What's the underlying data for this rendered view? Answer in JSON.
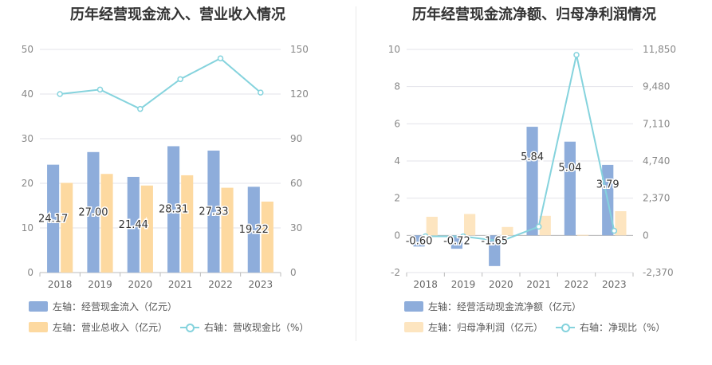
{
  "charts": [
    {
      "title": "历年经营现金流入、营业收入情况",
      "legend": [
        {
          "label": "左轴：经营现金流入（亿元）",
          "color": "#8eaddb",
          "kind": "bar"
        },
        {
          "label": "左轴：营业总收入（亿元）",
          "color": "#fdd9a0",
          "kind": "bar"
        },
        {
          "label": "右轴：营收现金比（%）",
          "color": "#85d3dd",
          "kind": "line"
        }
      ]
    },
    {
      "title": "历年经营现金流净额、归母净利润情况",
      "legend": [
        {
          "label": "左轴：经营活动现金流净额（亿元）",
          "color": "#8eaddb",
          "kind": "bar"
        },
        {
          "label": "左轴：归母净利润（亿元）",
          "color": "#fde5c0",
          "kind": "bar"
        },
        {
          "label": "右轴：净现比（%）",
          "color": "#85d3dd",
          "kind": "line"
        }
      ]
    }
  ],
  "chart_data": [
    {
      "type": "bar",
      "title": "历年经营现金流入、营业收入情况",
      "categories": [
        "2018",
        "2019",
        "2020",
        "2021",
        "2022",
        "2023"
      ],
      "y_left": {
        "min": 0,
        "max": 50,
        "ticks": [
          "0",
          "10",
          "20",
          "30",
          "40",
          "50"
        ]
      },
      "y_right": {
        "min": 0,
        "max": 150,
        "ticks": [
          "0",
          "30",
          "60",
          "90",
          "120",
          "150"
        ]
      },
      "grid": true,
      "legend_position": "bottom",
      "series": [
        {
          "name": "左轴：经营现金流入（亿元）",
          "type": "bar",
          "axis": "left",
          "color": "#8eaddb",
          "values": [
            24.17,
            27.0,
            21.44,
            28.31,
            27.33,
            19.22
          ],
          "labels": [
            "24.17",
            "27.00",
            "21.44",
            "28.31",
            "27.33",
            "19.22"
          ]
        },
        {
          "name": "左轴：营业总收入（亿元）",
          "type": "bar",
          "axis": "left",
          "color": "#fdd9a0",
          "values": [
            20.1,
            22.1,
            19.5,
            21.8,
            19.0,
            15.9
          ]
        },
        {
          "name": "右轴：营收现金比（%）",
          "type": "line",
          "axis": "right",
          "color": "#85d3dd",
          "values": [
            120,
            123,
            110,
            130,
            144,
            121
          ]
        }
      ]
    },
    {
      "type": "bar",
      "title": "历年经营现金流净额、归母净利润情况",
      "categories": [
        "2018",
        "2019",
        "2020",
        "2021",
        "2022",
        "2023"
      ],
      "y_left": {
        "min": -2,
        "max": 10,
        "ticks": [
          "-2",
          "0",
          "2",
          "4",
          "6",
          "8",
          "10"
        ]
      },
      "y_right": {
        "min": -2370,
        "max": 11850,
        "ticks": [
          "-2,370",
          "0",
          "2,370",
          "4,740",
          "7,110",
          "9,480",
          "11,850"
        ]
      },
      "grid": true,
      "legend_position": "bottom",
      "series": [
        {
          "name": "左轴：经营活动现金流净额（亿元）",
          "type": "bar",
          "axis": "left",
          "color": "#8eaddb",
          "values": [
            -0.6,
            -0.72,
            -1.65,
            5.84,
            5.04,
            3.79
          ],
          "labels": [
            "-0.60",
            "-0.72",
            "-1.65",
            "5.84",
            "5.04",
            "3.79"
          ]
        },
        {
          "name": "左轴：归母净利润（亿元）",
          "type": "bar",
          "axis": "left",
          "color": "#fde5c0",
          "values": [
            1.0,
            1.15,
            0.45,
            1.05,
            0.03,
            1.3
          ]
        },
        {
          "name": "右轴：净现比（%）",
          "type": "line",
          "axis": "right",
          "color": "#85d3dd",
          "values": [
            -60,
            -63,
            -367,
            556,
            11500,
            292
          ]
        }
      ]
    }
  ]
}
